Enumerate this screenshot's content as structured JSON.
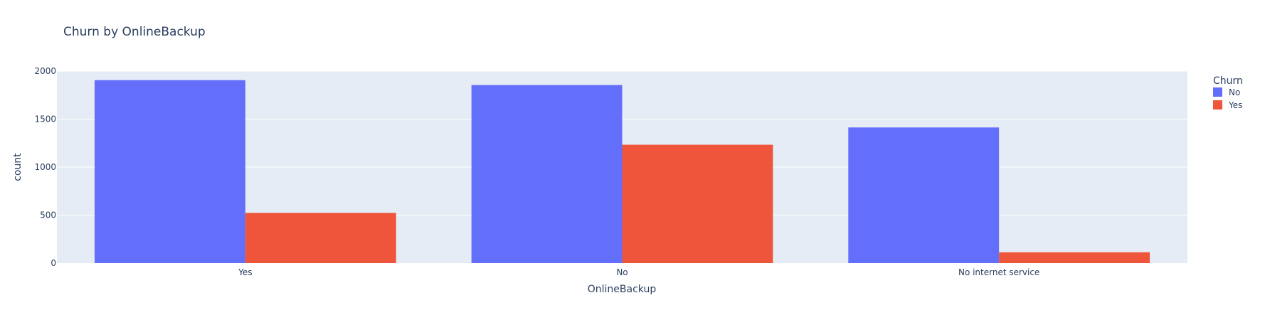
{
  "chart_data": {
    "type": "bar",
    "title": "Churn by OnlineBackup",
    "xlabel": "OnlineBackup",
    "ylabel": "count",
    "categories": [
      "Yes",
      "No",
      "No internet service"
    ],
    "series": [
      {
        "name": "No",
        "color": "#636efa",
        "values": [
          1906,
          1855,
          1413
        ]
      },
      {
        "name": "Yes",
        "color": "#ef553b",
        "values": [
          523,
          1233,
          113
        ]
      }
    ],
    "ylim": [
      0,
      2000
    ],
    "yticks": [
      0,
      500,
      1000,
      1500,
      2000
    ],
    "ytick_labels": [
      "0",
      "500",
      "1000",
      "1500",
      "2000"
    ],
    "legend": {
      "title": "Churn",
      "position": "top-right"
    },
    "grid": true,
    "plot_background": "#e5ecf6",
    "grid_color": "#ffffff"
  }
}
